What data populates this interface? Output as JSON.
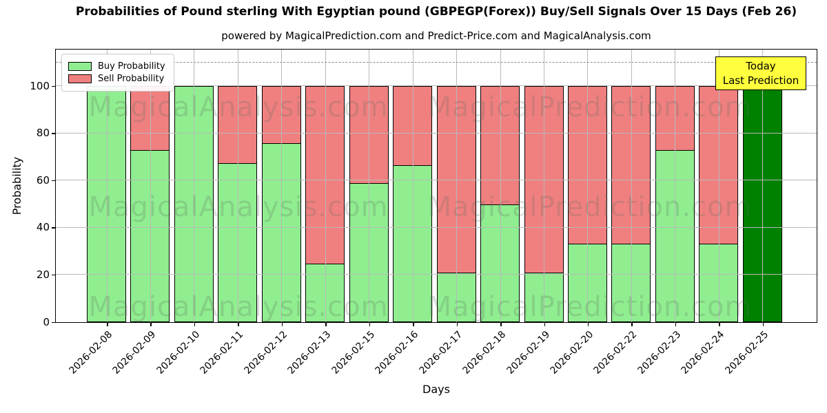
{
  "title": "Probabilities of Pound sterling With Egyptian pound (GBPEGP(Forex)) Buy/Sell Signals Over 15 Days (Feb 26)",
  "subtitle": "powered by MagicalPrediction.com and Predict-Price.com and MagicalAnalysis.com",
  "legend": {
    "buy_label": "Buy Probability",
    "sell_label": "Sell Probability"
  },
  "annotation": {
    "line1": "Today",
    "line2": "Last Prediction"
  },
  "watermarks": {
    "left": "MagicalAnalysis.com",
    "right": "MagicalPrediction.com"
  },
  "colors": {
    "buy": "#90ee90",
    "sell": "#f08080",
    "today": "#008000",
    "edge": "#000000",
    "grid": "#b8b8b8",
    "dashed_line": "#8a8a8a",
    "annotation_bg": "#ffff3d"
  },
  "chart_data": {
    "type": "bar",
    "stacked": true,
    "title": "Probabilities of Pound sterling With Egyptian pound (GBPEGP(Forex)) Buy/Sell Signals Over 15 Days (Feb 26)",
    "xlabel": "Days",
    "ylabel": "Probability",
    "yticks": [
      0,
      20,
      40,
      60,
      80,
      100
    ],
    "ylim": [
      0,
      115.3
    ],
    "dashed_line_y": 110,
    "grid": true,
    "legend_position": "upper left",
    "categories": [
      "2026-02-08",
      "2026-02-09",
      "2026-02-10",
      "2026-02-11",
      "2026-02-12",
      "2026-02-13",
      "2026-02-15",
      "2026-02-16",
      "2026-02-17",
      "2026-02-18",
      "2026-02-19",
      "2026-02-20",
      "2026-02-22",
      "2026-02-23",
      "2026-02-24",
      "2026-02-25"
    ],
    "series": [
      {
        "name": "Buy Probability",
        "values": [
          100,
          73.3,
          100,
          67.5,
          76,
          25,
          59,
          66.7,
          21.2,
          50,
          21.2,
          33.5,
          33.5,
          73.3,
          33.5,
          100
        ]
      },
      {
        "name": "Sell Probability",
        "values": [
          0,
          26.7,
          0,
          32.5,
          24,
          75,
          41,
          33.3,
          78.8,
          50,
          78.8,
          66.5,
          66.5,
          26.7,
          66.5,
          0
        ]
      }
    ],
    "today_bar": {
      "index": 15,
      "category": "2026-02-25",
      "value": 100
    }
  }
}
